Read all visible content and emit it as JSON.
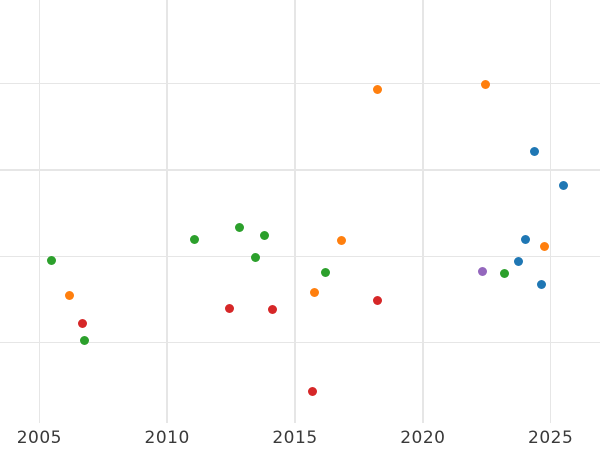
{
  "figure": {
    "background": "#ffffff",
    "grid_color": "#e6e6e6",
    "tick_label_color": "#3a3a3a"
  },
  "chart_data": {
    "type": "scatter",
    "title": "",
    "xlabel": "",
    "ylabel": "",
    "x_ticks": [
      2005,
      2010,
      2015,
      2020,
      2025
    ],
    "x_tick_labels": [
      "2005",
      "2010",
      "2015",
      "2020",
      "2025"
    ],
    "y_tick_labels": [],
    "y_gridlines": [
      1,
      2,
      3,
      4
    ],
    "xlim": [
      2003.46,
      2026.93
    ],
    "ylim": [
      0.07,
      4.97
    ],
    "grid": true,
    "legend_visible": false,
    "marker": "circle",
    "marker_size_px": 9,
    "series": [
      {
        "name": "green",
        "color": "#2ca02c",
        "points": [
          [
            2005.46,
            1.95
          ],
          [
            2006.75,
            1.02
          ],
          [
            2011.08,
            2.19
          ],
          [
            2012.81,
            2.34
          ],
          [
            2013.45,
            1.99
          ],
          [
            2013.8,
            2.24
          ],
          [
            2016.21,
            1.81
          ],
          [
            2023.19,
            1.8
          ]
        ]
      },
      {
        "name": "orange",
        "color": "#ff7f0e",
        "points": [
          [
            2006.19,
            1.55
          ],
          [
            2015.76,
            1.58
          ],
          [
            2016.81,
            2.18
          ],
          [
            2018.21,
            3.93
          ],
          [
            2022.47,
            3.99
          ],
          [
            2024.74,
            2.12
          ]
        ]
      },
      {
        "name": "red",
        "color": "#d62728",
        "points": [
          [
            2006.67,
            1.22
          ],
          [
            2012.45,
            1.4
          ],
          [
            2014.11,
            1.38
          ],
          [
            2015.69,
            0.44
          ],
          [
            2018.24,
            1.49
          ]
        ]
      },
      {
        "name": "blue",
        "color": "#1f77b4",
        "points": [
          [
            2023.75,
            1.94
          ],
          [
            2024.02,
            2.2
          ],
          [
            2024.35,
            3.21
          ],
          [
            2024.63,
            1.68
          ],
          [
            2025.49,
            2.82
          ]
        ]
      },
      {
        "name": "purple",
        "color": "#9467bd",
        "points": [
          [
            2022.33,
            1.83
          ]
        ]
      }
    ]
  }
}
